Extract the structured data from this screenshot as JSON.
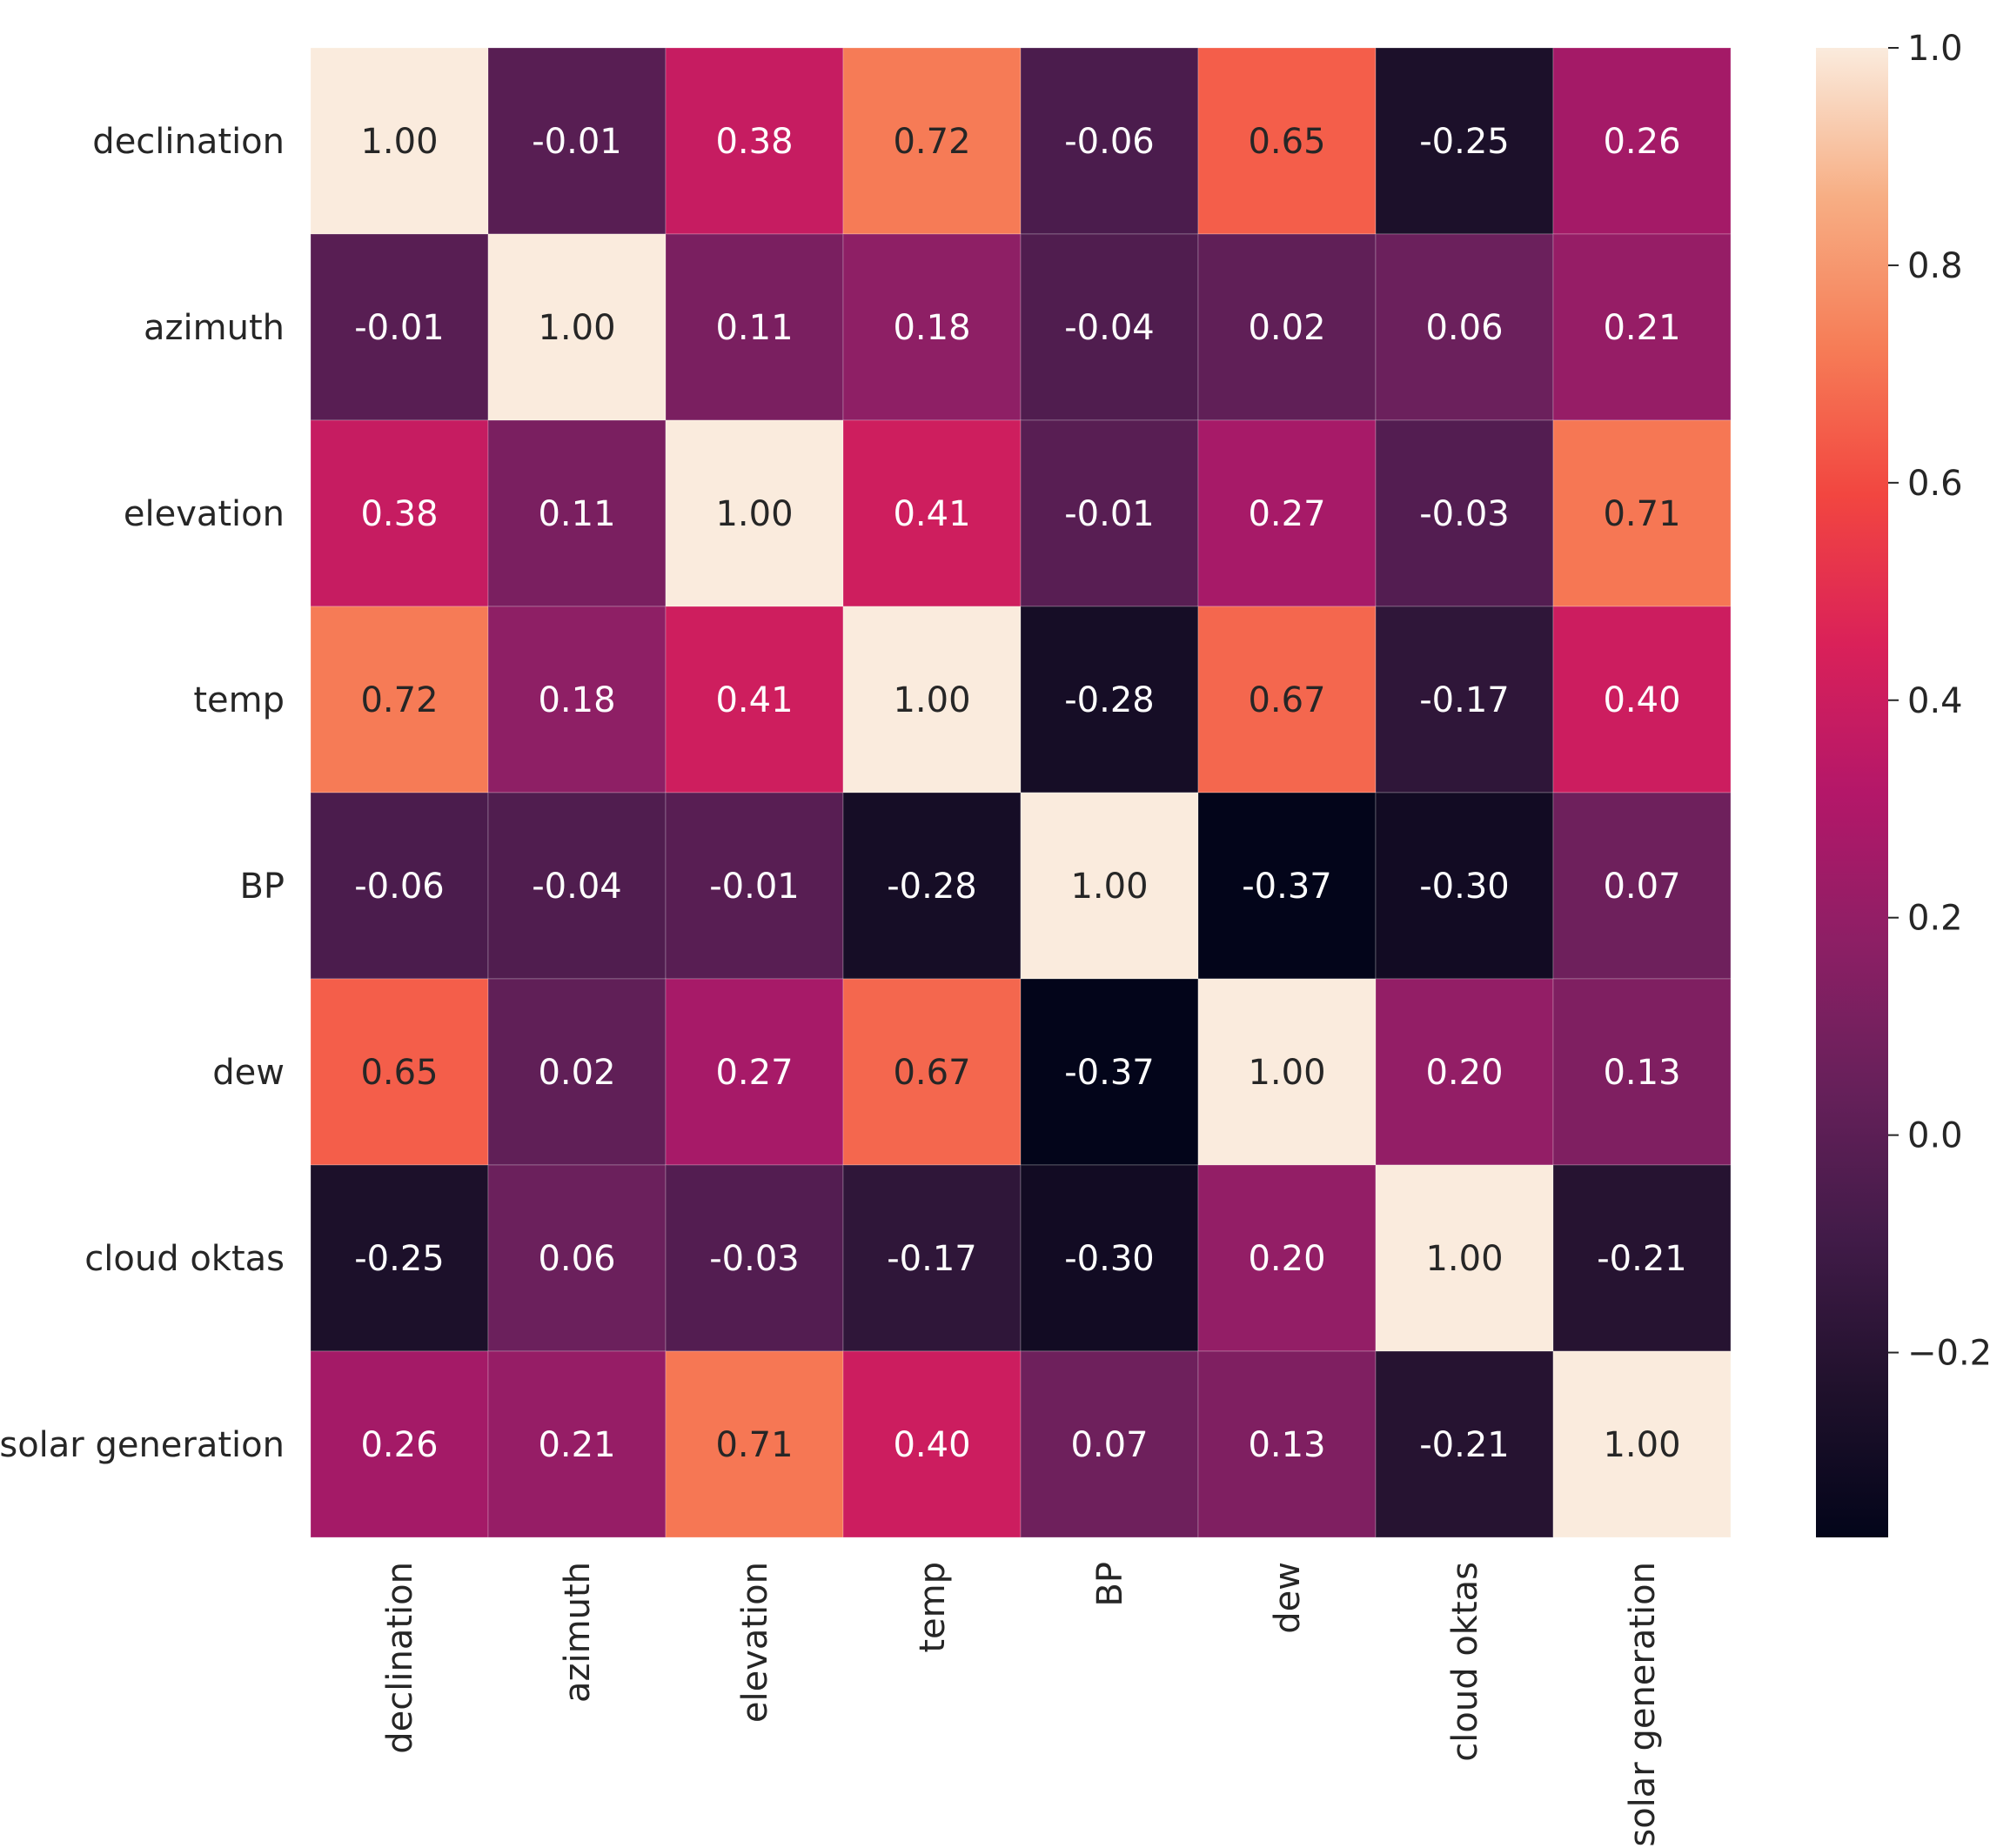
{
  "chart_data": {
    "type": "heatmap",
    "title": "",
    "xlabel": "",
    "ylabel": "",
    "labels": [
      "declination",
      "azimuth",
      "elevation",
      "temp",
      "BP",
      "dew",
      "cloud oktas",
      "solar generation"
    ],
    "values": [
      [
        1.0,
        -0.01,
        0.38,
        0.72,
        -0.06,
        0.65,
        -0.25,
        0.26
      ],
      [
        -0.01,
        1.0,
        0.11,
        0.18,
        -0.04,
        0.02,
        0.06,
        0.21
      ],
      [
        0.38,
        0.11,
        1.0,
        0.41,
        -0.01,
        0.27,
        -0.03,
        0.71
      ],
      [
        0.72,
        0.18,
        0.41,
        1.0,
        -0.28,
        0.67,
        -0.17,
        0.4
      ],
      [
        -0.06,
        -0.04,
        -0.01,
        -0.28,
        1.0,
        -0.37,
        -0.3,
        0.07
      ],
      [
        0.65,
        0.02,
        0.27,
        0.67,
        -0.37,
        1.0,
        0.2,
        0.13
      ],
      [
        -0.25,
        0.06,
        -0.03,
        -0.17,
        -0.3,
        0.2,
        1.0,
        -0.21
      ],
      [
        0.26,
        0.21,
        0.71,
        0.4,
        0.07,
        0.13,
        -0.21,
        1.0
      ]
    ],
    "value_format": "0.00",
    "colormap": "rocket",
    "colorbar": {
      "min": -0.37,
      "max": 1.0,
      "ticks": [
        1.0,
        0.8,
        0.6,
        0.4,
        0.2,
        0.0,
        -0.2
      ],
      "tick_labels": [
        "1.0",
        "0.8",
        "0.6",
        "0.4",
        "0.2",
        "0.0",
        "−0.2"
      ]
    }
  }
}
